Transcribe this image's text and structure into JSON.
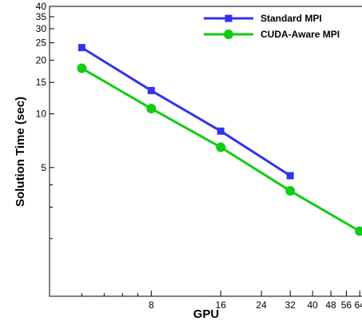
{
  "chart_data": {
    "type": "line",
    "title": "",
    "xlabel": "GPU",
    "ylabel": "Solution Time (sec)",
    "x_scale": "log",
    "y_scale": "log",
    "xlim": [
      2.9,
      66
    ],
    "ylim": [
      0.95,
      40
    ],
    "x_ticks": [
      8,
      16,
      24,
      32,
      40,
      48,
      56,
      64
    ],
    "x_tick_labels": [
      "8",
      "16",
      "24",
      "32",
      "40",
      "48",
      "56",
      "64"
    ],
    "y_ticks": [
      5,
      10,
      15,
      20,
      25,
      30,
      35,
      40
    ],
    "y_tick_labels": [
      "5",
      "10",
      "15",
      "20",
      "25",
      "30",
      "35",
      "40"
    ],
    "grid": false,
    "legend_position": "top-right",
    "series": [
      {
        "name": "Standard MPI",
        "color": "#3333ee",
        "marker": "square",
        "x": [
          4,
          8,
          16,
          32
        ],
        "y": [
          23.5,
          13.5,
          8.0,
          4.5
        ]
      },
      {
        "name": "CUDA-Aware MPI",
        "color": "#11cc11",
        "marker": "circle",
        "x": [
          4,
          8,
          16,
          32,
          64
        ],
        "y": [
          18.0,
          10.7,
          6.5,
          3.7,
          2.2
        ]
      }
    ]
  }
}
